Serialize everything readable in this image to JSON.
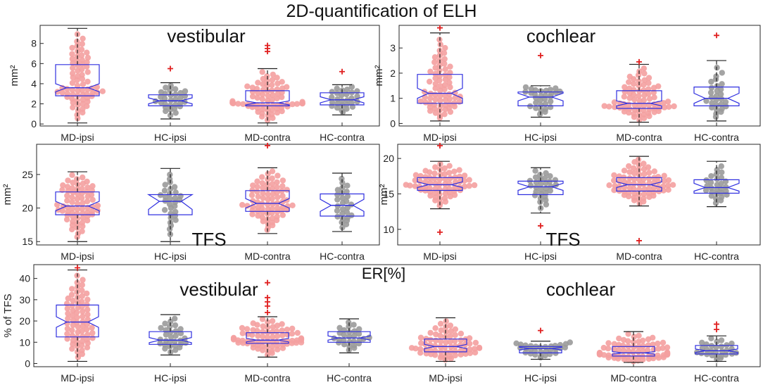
{
  "title": "2D-quantification of ELH",
  "colors": {
    "md": "#f4a0a0",
    "hc": "#9a9a9a",
    "box": "#3030e0",
    "outlier": "#e02020",
    "whisker": "#202020"
  },
  "chart_data": [
    {
      "type": "box",
      "label": "vestibular",
      "ylabel": "mm²",
      "ylim": [
        -0.2,
        9.8
      ],
      "yticks": [
        0,
        2,
        4,
        6,
        8
      ],
      "categories": [
        "MD-ipsi",
        "HC-ipsi",
        "MD-contra",
        "HC-contra"
      ],
      "boxes": [
        {
          "q1": 2.8,
          "median": 3.6,
          "q3": 5.9,
          "notch_low": 3.2,
          "notch_high": 4.0,
          "whisker_low": 0.1,
          "whisker_high": 9.5,
          "outliers": [],
          "n": 70,
          "group": "md"
        },
        {
          "q1": 1.8,
          "median": 2.3,
          "q3": 2.9,
          "notch_low": 2.0,
          "notch_high": 2.6,
          "whisker_low": 0.5,
          "whisker_high": 4.1,
          "outliers": [
            5.5
          ],
          "n": 30,
          "group": "hc"
        },
        {
          "q1": 1.8,
          "median": 2.1,
          "q3": 3.3,
          "notch_low": 1.9,
          "notch_high": 2.3,
          "whisker_low": 0.1,
          "whisker_high": 5.5,
          "outliers": [
            7.2,
            7.5,
            7.8
          ],
          "n": 75,
          "group": "md"
        },
        {
          "q1": 1.9,
          "median": 2.4,
          "q3": 3.1,
          "notch_low": 2.1,
          "notch_high": 2.7,
          "whisker_low": 0.9,
          "whisker_high": 3.9,
          "outliers": [
            5.2
          ],
          "n": 28,
          "group": "hc"
        }
      ]
    },
    {
      "type": "box",
      "label": "cochlear",
      "ylabel": "mm²",
      "ylim": [
        -0.1,
        3.9
      ],
      "yticks": [
        0,
        1,
        2,
        3
      ],
      "categories": [
        "MD-ipsi",
        "HC-ipsi",
        "MD-contra",
        "HC-contra"
      ],
      "boxes": [
        {
          "q1": 0.8,
          "median": 1.2,
          "q3": 1.95,
          "notch_low": 1.0,
          "notch_high": 1.4,
          "whisker_low": 0.1,
          "whisker_high": 3.6,
          "outliers": [
            3.8
          ],
          "n": 70,
          "group": "md"
        },
        {
          "q1": 0.7,
          "median": 1.05,
          "q3": 1.25,
          "notch_low": 0.9,
          "notch_high": 1.2,
          "whisker_low": 0.25,
          "whisker_high": 1.5,
          "outliers": [
            2.7
          ],
          "n": 30,
          "group": "hc"
        },
        {
          "q1": 0.6,
          "median": 0.8,
          "q3": 1.3,
          "notch_low": 0.7,
          "notch_high": 0.9,
          "whisker_low": 0.05,
          "whisker_high": 2.35,
          "outliers": [
            2.45
          ],
          "n": 75,
          "group": "md"
        },
        {
          "q1": 0.7,
          "median": 1.0,
          "q3": 1.45,
          "notch_low": 0.8,
          "notch_high": 1.2,
          "whisker_low": 0.1,
          "whisker_high": 2.5,
          "outliers": [
            3.5
          ],
          "n": 28,
          "group": "hc"
        }
      ]
    },
    {
      "type": "box",
      "label": "TFS",
      "ylabel": "mm²",
      "ylim": [
        14.5,
        29.5
      ],
      "yticks": [
        15,
        20,
        25
      ],
      "categories": [
        "MD-ipsi",
        "HC-ipsi",
        "MD-contra",
        "HC-contra"
      ],
      "boxes": [
        {
          "q1": 19.0,
          "median": 20.3,
          "q3": 22.4,
          "notch_low": 19.6,
          "notch_high": 21.0,
          "whisker_low": 15.0,
          "whisker_high": 25.4,
          "outliers": [],
          "n": 70,
          "group": "md"
        },
        {
          "q1": 19.0,
          "median": 21.0,
          "q3": 22.0,
          "notch_low": 19.8,
          "notch_high": 22.0,
          "whisker_low": 15.0,
          "whisker_high": 25.9,
          "outliers": [],
          "n": 30,
          "group": "hc"
        },
        {
          "q1": 19.5,
          "median": 20.7,
          "q3": 22.6,
          "notch_low": 20.0,
          "notch_high": 21.4,
          "whisker_low": 16.2,
          "whisker_high": 26.0,
          "outliers": [
            29.3
          ],
          "n": 75,
          "group": "md"
        },
        {
          "q1": 18.8,
          "median": 20.4,
          "q3": 22.1,
          "notch_low": 19.5,
          "notch_high": 21.3,
          "whisker_low": 16.5,
          "whisker_high": 25.2,
          "outliers": [],
          "n": 28,
          "group": "hc"
        }
      ]
    },
    {
      "type": "box",
      "label": "TFS",
      "ylabel": "mm²",
      "ylim": [
        7.8,
        22.0
      ],
      "yticks": [
        10,
        15,
        20
      ],
      "categories": [
        "MD-ipsi",
        "HC-ipsi",
        "MD-contra",
        "HC-contra"
      ],
      "boxes": [
        {
          "q1": 15.5,
          "median": 16.3,
          "q3": 17.3,
          "notch_low": 15.9,
          "notch_high": 16.7,
          "whisker_low": 12.9,
          "whisker_high": 19.6,
          "outliers": [
            9.6,
            21.8
          ],
          "n": 70,
          "group": "md"
        },
        {
          "q1": 14.9,
          "median": 16.0,
          "q3": 16.8,
          "notch_low": 15.5,
          "notch_high": 16.5,
          "whisker_low": 12.3,
          "whisker_high": 18.7,
          "outliers": [
            10.5
          ],
          "n": 30,
          "group": "hc"
        },
        {
          "q1": 15.4,
          "median": 16.3,
          "q3": 17.3,
          "notch_low": 15.9,
          "notch_high": 16.7,
          "whisker_low": 13.3,
          "whisker_high": 20.3,
          "outliers": [
            8.4
          ],
          "n": 75,
          "group": "md"
        },
        {
          "q1": 15.1,
          "median": 15.9,
          "q3": 17.0,
          "notch_low": 15.4,
          "notch_high": 16.5,
          "whisker_low": 13.2,
          "whisker_high": 19.6,
          "outliers": [],
          "n": 28,
          "group": "hc"
        }
      ]
    },
    {
      "type": "box",
      "label": "ER[%]",
      "sub_labels": [
        "vestibular",
        "cochlear"
      ],
      "ylabel": "% of TFS",
      "ylim": [
        -1.5,
        46.5
      ],
      "yticks": [
        0,
        10,
        20,
        30,
        40
      ],
      "categories": [
        "MD-ipsi",
        "HC-ipsi",
        "MD-contra",
        "HC-contra",
        "MD-ipsi",
        "HC-ipsi",
        "MD-contra",
        "HC-contra"
      ],
      "boxes": [
        {
          "q1": 12.5,
          "median": 19.5,
          "q3": 27.5,
          "notch_low": 17.0,
          "notch_high": 22.0,
          "whisker_low": 1.0,
          "whisker_high": 44.0,
          "outliers": [
            45.0
          ],
          "n": 70,
          "group": "md"
        },
        {
          "q1": 9.0,
          "median": 11.0,
          "q3": 15.0,
          "notch_low": 9.8,
          "notch_high": 12.2,
          "whisker_low": 4.0,
          "whisker_high": 23.0,
          "outliers": [],
          "n": 30,
          "group": "hc"
        },
        {
          "q1": 9.5,
          "median": 11.0,
          "q3": 14.5,
          "notch_low": 10.2,
          "notch_high": 11.8,
          "whisker_low": 3.0,
          "whisker_high": 22.0,
          "outliers": [
            24.0,
            27.0,
            29.0,
            31.0,
            38.0
          ],
          "n": 75,
          "group": "md"
        },
        {
          "q1": 10.0,
          "median": 12.0,
          "q3": 15.0,
          "notch_low": 11.0,
          "notch_high": 13.0,
          "whisker_low": 5.0,
          "whisker_high": 21.0,
          "outliers": [],
          "n": 28,
          "group": "hc"
        },
        {
          "q1": 5.5,
          "median": 8.0,
          "q3": 11.5,
          "notch_low": 7.0,
          "notch_high": 9.0,
          "whisker_low": 1.0,
          "whisker_high": 21.5,
          "outliers": [],
          "n": 70,
          "group": "md"
        },
        {
          "q1": 5.0,
          "median": 7.0,
          "q3": 8.0,
          "notch_low": 6.4,
          "notch_high": 7.6,
          "whisker_low": 2.0,
          "whisker_high": 10.5,
          "outliers": [
            15.5
          ],
          "n": 30,
          "group": "hc"
        },
        {
          "q1": 3.5,
          "median": 5.0,
          "q3": 8.0,
          "notch_low": 4.4,
          "notch_high": 5.6,
          "whisker_low": 0.5,
          "whisker_high": 15.0,
          "outliers": [],
          "n": 75,
          "group": "md"
        },
        {
          "q1": 4.5,
          "median": 6.0,
          "q3": 8.5,
          "notch_low": 5.2,
          "notch_high": 6.8,
          "whisker_low": 1.0,
          "whisker_high": 13.0,
          "outliers": [
            16.0,
            18.5
          ],
          "n": 28,
          "group": "hc"
        }
      ]
    }
  ]
}
